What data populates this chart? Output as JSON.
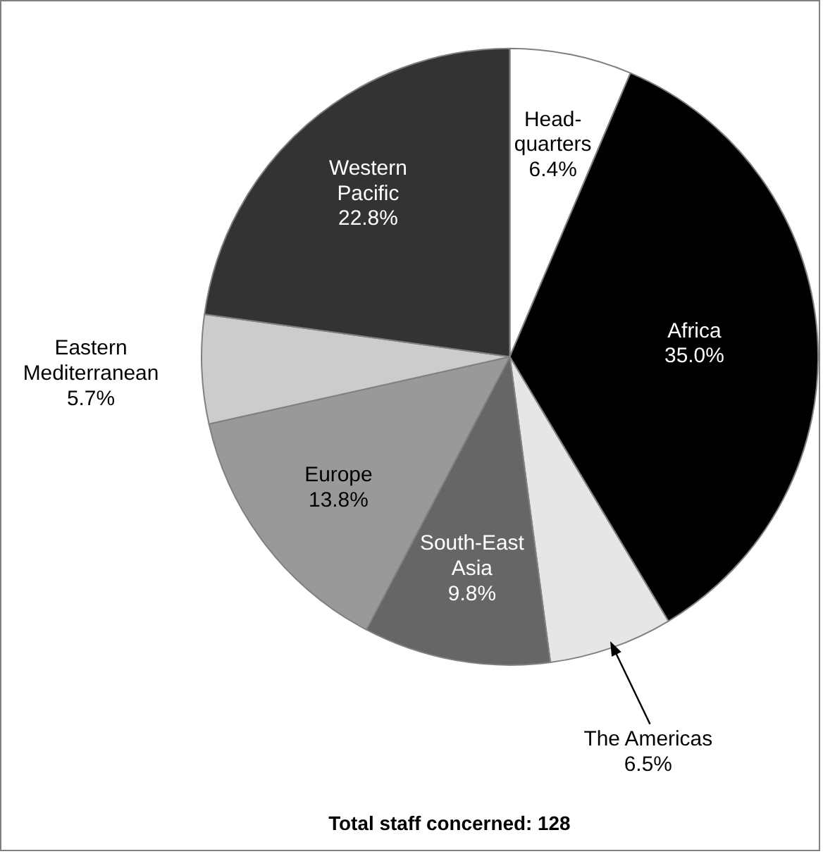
{
  "chart_data": {
    "type": "pie",
    "categories": [
      "Head-\nquarters",
      "Africa",
      "The Americas",
      "South-East\nAsia",
      "Europe",
      "Eastern\nMediterranean",
      "Western\nPacific"
    ],
    "values": [
      6.4,
      35.0,
      6.5,
      9.8,
      13.8,
      5.7,
      22.8
    ],
    "colors": [
      "#ffffff",
      "#000000",
      "#e6e6e6",
      "#666666",
      "#999999",
      "#cccccc",
      "#333333"
    ],
    "value_labels": [
      "6.4%",
      "35.0%",
      "6.5%",
      "9.8%",
      "13.8%",
      "5.7%",
      "22.8%"
    ],
    "annotations": [
      "Total staff concerned: 128"
    ],
    "legend": false
  }
}
